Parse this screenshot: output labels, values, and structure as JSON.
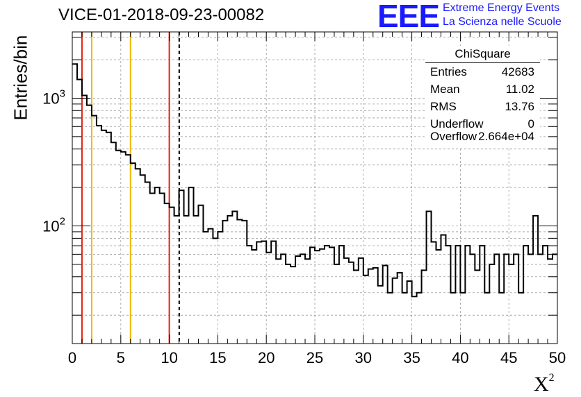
{
  "title": "VICE-01-2018-09-23-00082",
  "logo": {
    "mark": "EEE",
    "line1": "Extreme Energy Events",
    "line2": "La Scienza nelle Scuole"
  },
  "stats": {
    "name": "ChiSquare",
    "rows": [
      {
        "key": "Entries",
        "value": "42683"
      },
      {
        "key": "Mean",
        "value": "11.02"
      },
      {
        "key": "RMS",
        "value": "13.76"
      },
      {
        "key": "Underflow",
        "value": "0"
      },
      {
        "key": "Overflow",
        "value": "2.664e+04"
      }
    ]
  },
  "chart_data": {
    "type": "histogram",
    "xlabel": "X",
    "xlabel_sup": "2",
    "ylabel": "Entries/bin",
    "xlim": [
      0,
      50
    ],
    "ylim": [
      12,
      3300
    ],
    "log_y": true,
    "grid": true,
    "x_ticks": [
      0,
      5,
      10,
      15,
      20,
      25,
      30,
      35,
      40,
      45,
      50
    ],
    "y_tick_labels": [
      {
        "base": "10",
        "exp": "2",
        "value": 100
      },
      {
        "base": "10",
        "exp": "3",
        "value": 1000
      }
    ],
    "bin_width": 0.5,
    "bin_values": [
      1850,
      1400,
      1050,
      880,
      730,
      610,
      560,
      540,
      450,
      390,
      380,
      360,
      310,
      280,
      250,
      220,
      180,
      200,
      180,
      150,
      140,
      120,
      190,
      120,
      200,
      120,
      145,
      90,
      95,
      80,
      90,
      110,
      120,
      130,
      112,
      110,
      70,
      65,
      75,
      76,
      62,
      76,
      55,
      60,
      50,
      48,
      58,
      60,
      55,
      68,
      64,
      66,
      70,
      68,
      50,
      70,
      56,
      52,
      45,
      56,
      41,
      46,
      47,
      34,
      49,
      30,
      39,
      43,
      30,
      37,
      28,
      30,
      45,
      130,
      75,
      65,
      85,
      70,
      30,
      70,
      30,
      70,
      60,
      45,
      70,
      30,
      50,
      60,
      30,
      60,
      50,
      60,
      30,
      70,
      60,
      120,
      60,
      70,
      55,
      60
    ],
    "vlines": [
      {
        "x": 1,
        "color": "#e8220f",
        "style": "solid"
      },
      {
        "x": 2,
        "color": "#f0b800",
        "style": "solid"
      },
      {
        "x": 6,
        "color": "#f0b800",
        "style": "solid"
      },
      {
        "x": 10,
        "color": "#e8220f",
        "style": "solid"
      },
      {
        "x": 11.02,
        "color": "#000000",
        "style": "dashed"
      }
    ],
    "line_color": "#000000"
  }
}
